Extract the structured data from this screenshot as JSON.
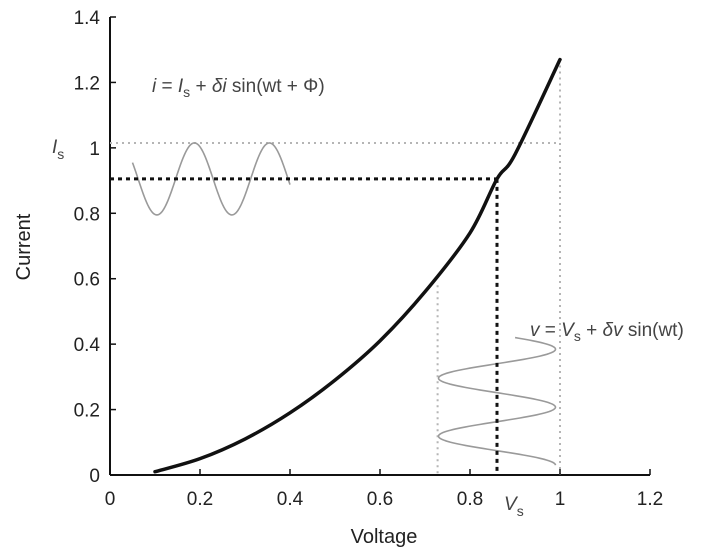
{
  "chart_data": {
    "type": "line",
    "xlabel": "Voltage",
    "ylabel": "Current",
    "xlim": [
      0,
      1.2
    ],
    "ylim": [
      0,
      1.4
    ],
    "x_ticks": [
      "0",
      "0.2",
      "0.4",
      "0.6",
      "0.8",
      "1",
      "1.2"
    ],
    "y_ticks": [
      "0",
      "0.2",
      "0.4",
      "0.6",
      "0.8",
      "1",
      "1.2",
      "1.4"
    ],
    "grid": false,
    "series": [
      {
        "values_x": [
          0.1,
          0.2,
          0.3,
          0.4,
          0.5,
          0.6,
          0.7,
          0.8,
          0.86,
          0.9,
          1.0
        ],
        "values_y": [
          0.01,
          0.05,
          0.11,
          0.19,
          0.29,
          0.41,
          0.56,
          0.74,
          0.905,
          0.98,
          1.27
        ]
      }
    ],
    "operating_point": {
      "x": 0.86,
      "y": 0.905
    },
    "current_wave": {
      "x_start": 0.05,
      "x_end": 0.4,
      "center": 0.905,
      "amplitude": 0.11,
      "periods": 2.1
    },
    "voltage_wave": {
      "y_start": 0.03,
      "y_end": 0.42,
      "center": 0.86,
      "amplitude": 0.13,
      "periods": 2.2
    },
    "guide_lines": {
      "x_min": 0.728,
      "x_max": 1.0,
      "y_max": 1.015
    }
  },
  "annotations": {
    "current_eq": {
      "lhs": "i",
      "eq_sign": " = ",
      "I": "I",
      "I_sub": "s",
      "plus": " + ",
      "delta": "δ",
      "var": "i",
      "sin": " sin(wt + Φ)"
    },
    "voltage_eq": {
      "lhs": "v",
      "eq_sign": " = ",
      "V": "V",
      "V_sub": "s",
      "plus": " + ",
      "delta": "δ",
      "var": "v",
      "sin": " sin(wt)"
    },
    "Is_label": {
      "main": "I",
      "sub": "s"
    },
    "Vs_label": {
      "main": "V",
      "sub": "s"
    }
  },
  "colors": {
    "curve": "#111111",
    "wave": "#9a9a9a",
    "guide": "#b5b5b5",
    "axis": "#111111"
  }
}
